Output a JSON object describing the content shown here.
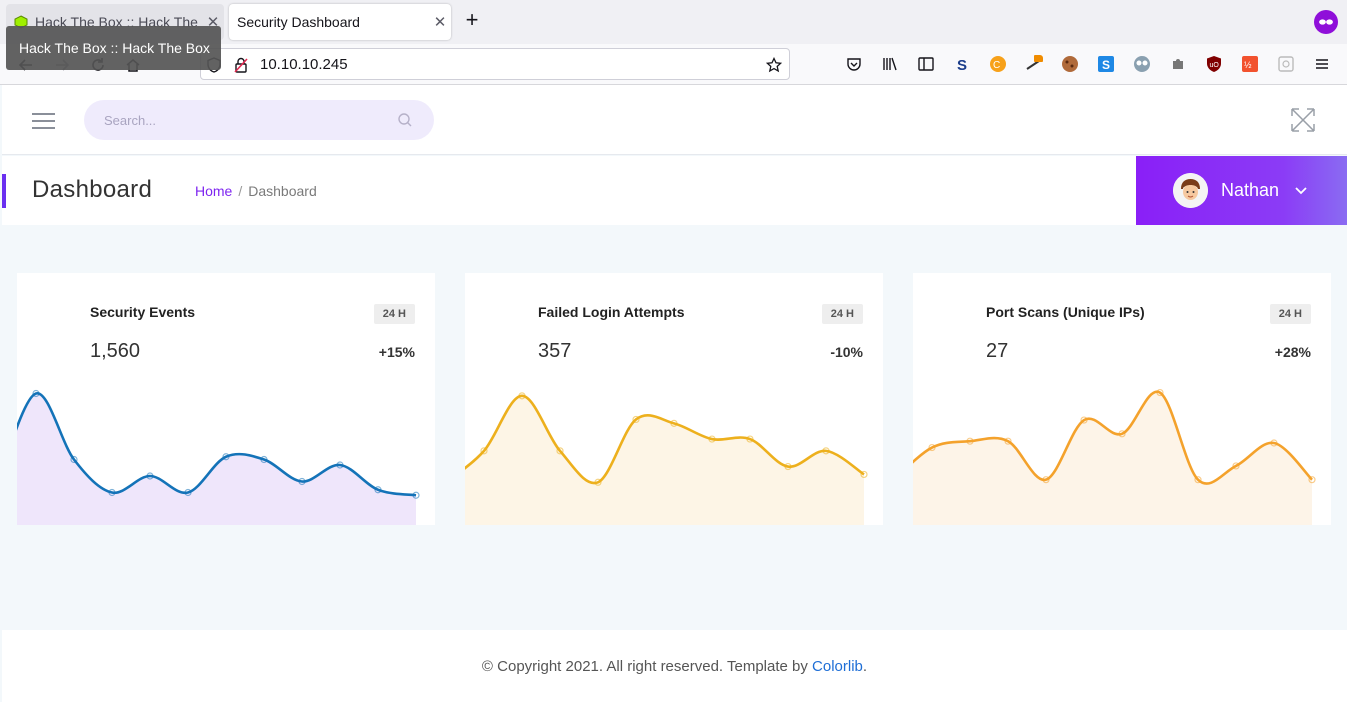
{
  "browser": {
    "tabs": [
      {
        "title": "Hack The Box :: Hack The Box",
        "active": false
      },
      {
        "title": "Security Dashboard",
        "active": true
      }
    ],
    "tooltip": "Hack The Box :: Hack The Box",
    "url": "10.10.10.245"
  },
  "header": {
    "search_placeholder": "Search..."
  },
  "page": {
    "title": "Dashboard",
    "breadcrumb": {
      "home": "Home",
      "separator": "/",
      "current": "Dashboard"
    },
    "user": {
      "name": "Nathan"
    }
  },
  "cards": [
    {
      "title": "Security Events",
      "badge": "24 H",
      "value": "1,560",
      "delta": "+15%",
      "color": "#1473b8",
      "fill": "#efe6fb"
    },
    {
      "title": "Failed Login Attempts",
      "badge": "24 H",
      "value": "357",
      "delta": "-10%",
      "color": "#edb01d",
      "fill": "#fdf5e6"
    },
    {
      "title": "Port Scans (Unique IPs)",
      "badge": "24 H",
      "value": "27",
      "delta": "+28%",
      "color": "#f4a22c",
      "fill": "#fdf4e8"
    }
  ],
  "chart_data": [
    {
      "type": "area",
      "x": [
        1,
        2,
        3,
        4,
        5,
        6,
        7,
        8,
        9,
        10,
        11,
        12
      ],
      "values": [
        3,
        19,
        7,
        1,
        4,
        1,
        7.5,
        7,
        3,
        6,
        1.5,
        0.5
      ],
      "ylim": [
        0,
        20
      ],
      "color": "#1473b8"
    },
    {
      "type": "area",
      "x": [
        1,
        2,
        3,
        4,
        5,
        6,
        7,
        8,
        9,
        10,
        11,
        12
      ],
      "values": [
        2,
        6,
        13,
        6,
        2,
        10,
        9.5,
        7.5,
        7.5,
        4,
        6,
        3
      ],
      "ylim": [
        0,
        14
      ],
      "color": "#edb01d"
    },
    {
      "type": "area",
      "x": [
        1,
        2,
        3,
        4,
        5,
        6,
        7,
        8,
        9,
        10,
        11,
        12
      ],
      "values": [
        2,
        5.5,
        6.2,
        6.2,
        2,
        8.5,
        7,
        11.5,
        2,
        3.5,
        6,
        2
      ],
      "ylim": [
        0,
        12
      ],
      "color": "#f4a22c"
    }
  ],
  "footer": {
    "text": "© Copyright 2021. All right reserved. Template by ",
    "link": "Colorlib",
    "suffix": "."
  }
}
